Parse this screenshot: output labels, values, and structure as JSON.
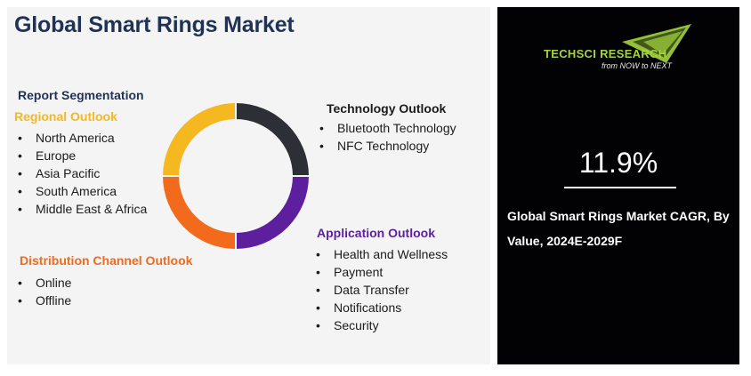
{
  "title": "Global Smart Rings Market",
  "segmentation_title": "Report Segmentation",
  "regional": {
    "title": "Regional Outlook",
    "items": [
      "North America",
      "Europe",
      "Asia Pacific",
      "South America",
      "Middle East & Africa"
    ]
  },
  "technology": {
    "title": "Technology Outlook",
    "items": [
      "Bluetooth Technology",
      "NFC Technology"
    ]
  },
  "application": {
    "title": "Application Outlook",
    "items": [
      "Health and Wellness",
      "Payment",
      "Data Transfer",
      "Notifications",
      "Security"
    ]
  },
  "distribution": {
    "title": "Distribution Channel Outlook",
    "items": [
      "Online",
      "Offline"
    ]
  },
  "logo": {
    "name": "TECHSCI RESEARCH",
    "tagline": "from NOW to NEXT"
  },
  "cagr": {
    "value": "11.9%",
    "caption": "Global Smart Rings Market CAGR, By Value, 2024E-2029F"
  },
  "colors": {
    "title": "#1f3356",
    "regional": "#f5b820",
    "technology": "#2c2f36",
    "application": "#5e1f9e",
    "distribution": "#f26a1b",
    "panel": "#020204",
    "logo_green": "#a3d43f"
  }
}
